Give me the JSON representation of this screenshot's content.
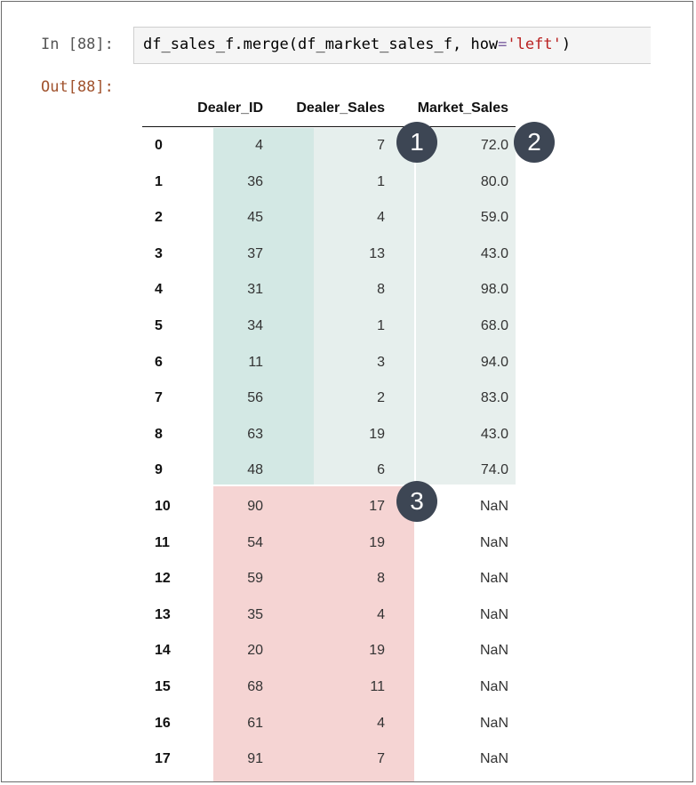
{
  "input_prompt": "In [88]:",
  "output_prompt": "Out[88]:",
  "code": {
    "call": "df_sales_f.merge(df_market_sales_f, how",
    "eq": "=",
    "arg": "'left'",
    "close": ")"
  },
  "table": {
    "columns": [
      "Dealer_ID",
      "Dealer_Sales",
      "Market_Sales"
    ],
    "rows": [
      {
        "index": "0",
        "Dealer_ID": "4",
        "Dealer_Sales": "7",
        "Market_Sales": "72.0"
      },
      {
        "index": "1",
        "Dealer_ID": "36",
        "Dealer_Sales": "1",
        "Market_Sales": "80.0"
      },
      {
        "index": "2",
        "Dealer_ID": "45",
        "Dealer_Sales": "4",
        "Market_Sales": "59.0"
      },
      {
        "index": "3",
        "Dealer_ID": "37",
        "Dealer_Sales": "13",
        "Market_Sales": "43.0"
      },
      {
        "index": "4",
        "Dealer_ID": "31",
        "Dealer_Sales": "8",
        "Market_Sales": "98.0"
      },
      {
        "index": "5",
        "Dealer_ID": "34",
        "Dealer_Sales": "1",
        "Market_Sales": "68.0"
      },
      {
        "index": "6",
        "Dealer_ID": "11",
        "Dealer_Sales": "3",
        "Market_Sales": "94.0"
      },
      {
        "index": "7",
        "Dealer_ID": "56",
        "Dealer_Sales": "2",
        "Market_Sales": "83.0"
      },
      {
        "index": "8",
        "Dealer_ID": "63",
        "Dealer_Sales": "19",
        "Market_Sales": "43.0"
      },
      {
        "index": "9",
        "Dealer_ID": "48",
        "Dealer_Sales": "6",
        "Market_Sales": "74.0"
      },
      {
        "index": "10",
        "Dealer_ID": "90",
        "Dealer_Sales": "17",
        "Market_Sales": "NaN"
      },
      {
        "index": "11",
        "Dealer_ID": "54",
        "Dealer_Sales": "19",
        "Market_Sales": "NaN"
      },
      {
        "index": "12",
        "Dealer_ID": "59",
        "Dealer_Sales": "8",
        "Market_Sales": "NaN"
      },
      {
        "index": "13",
        "Dealer_ID": "35",
        "Dealer_Sales": "4",
        "Market_Sales": "NaN"
      },
      {
        "index": "14",
        "Dealer_ID": "20",
        "Dealer_Sales": "19",
        "Market_Sales": "NaN"
      },
      {
        "index": "15",
        "Dealer_ID": "68",
        "Dealer_Sales": "11",
        "Market_Sales": "NaN"
      },
      {
        "index": "16",
        "Dealer_ID": "61",
        "Dealer_Sales": "4",
        "Market_Sales": "NaN"
      },
      {
        "index": "17",
        "Dealer_ID": "91",
        "Dealer_Sales": "7",
        "Market_Sales": "NaN"
      }
    ]
  },
  "badges": [
    "1",
    "2",
    "3"
  ],
  "colors": {
    "matched_id": "#d3e8e4",
    "matched_sales": "#e6efed",
    "matched_market": "#e7efed",
    "unmatched": "#f5d4d3",
    "badge": "#3d4654"
  }
}
